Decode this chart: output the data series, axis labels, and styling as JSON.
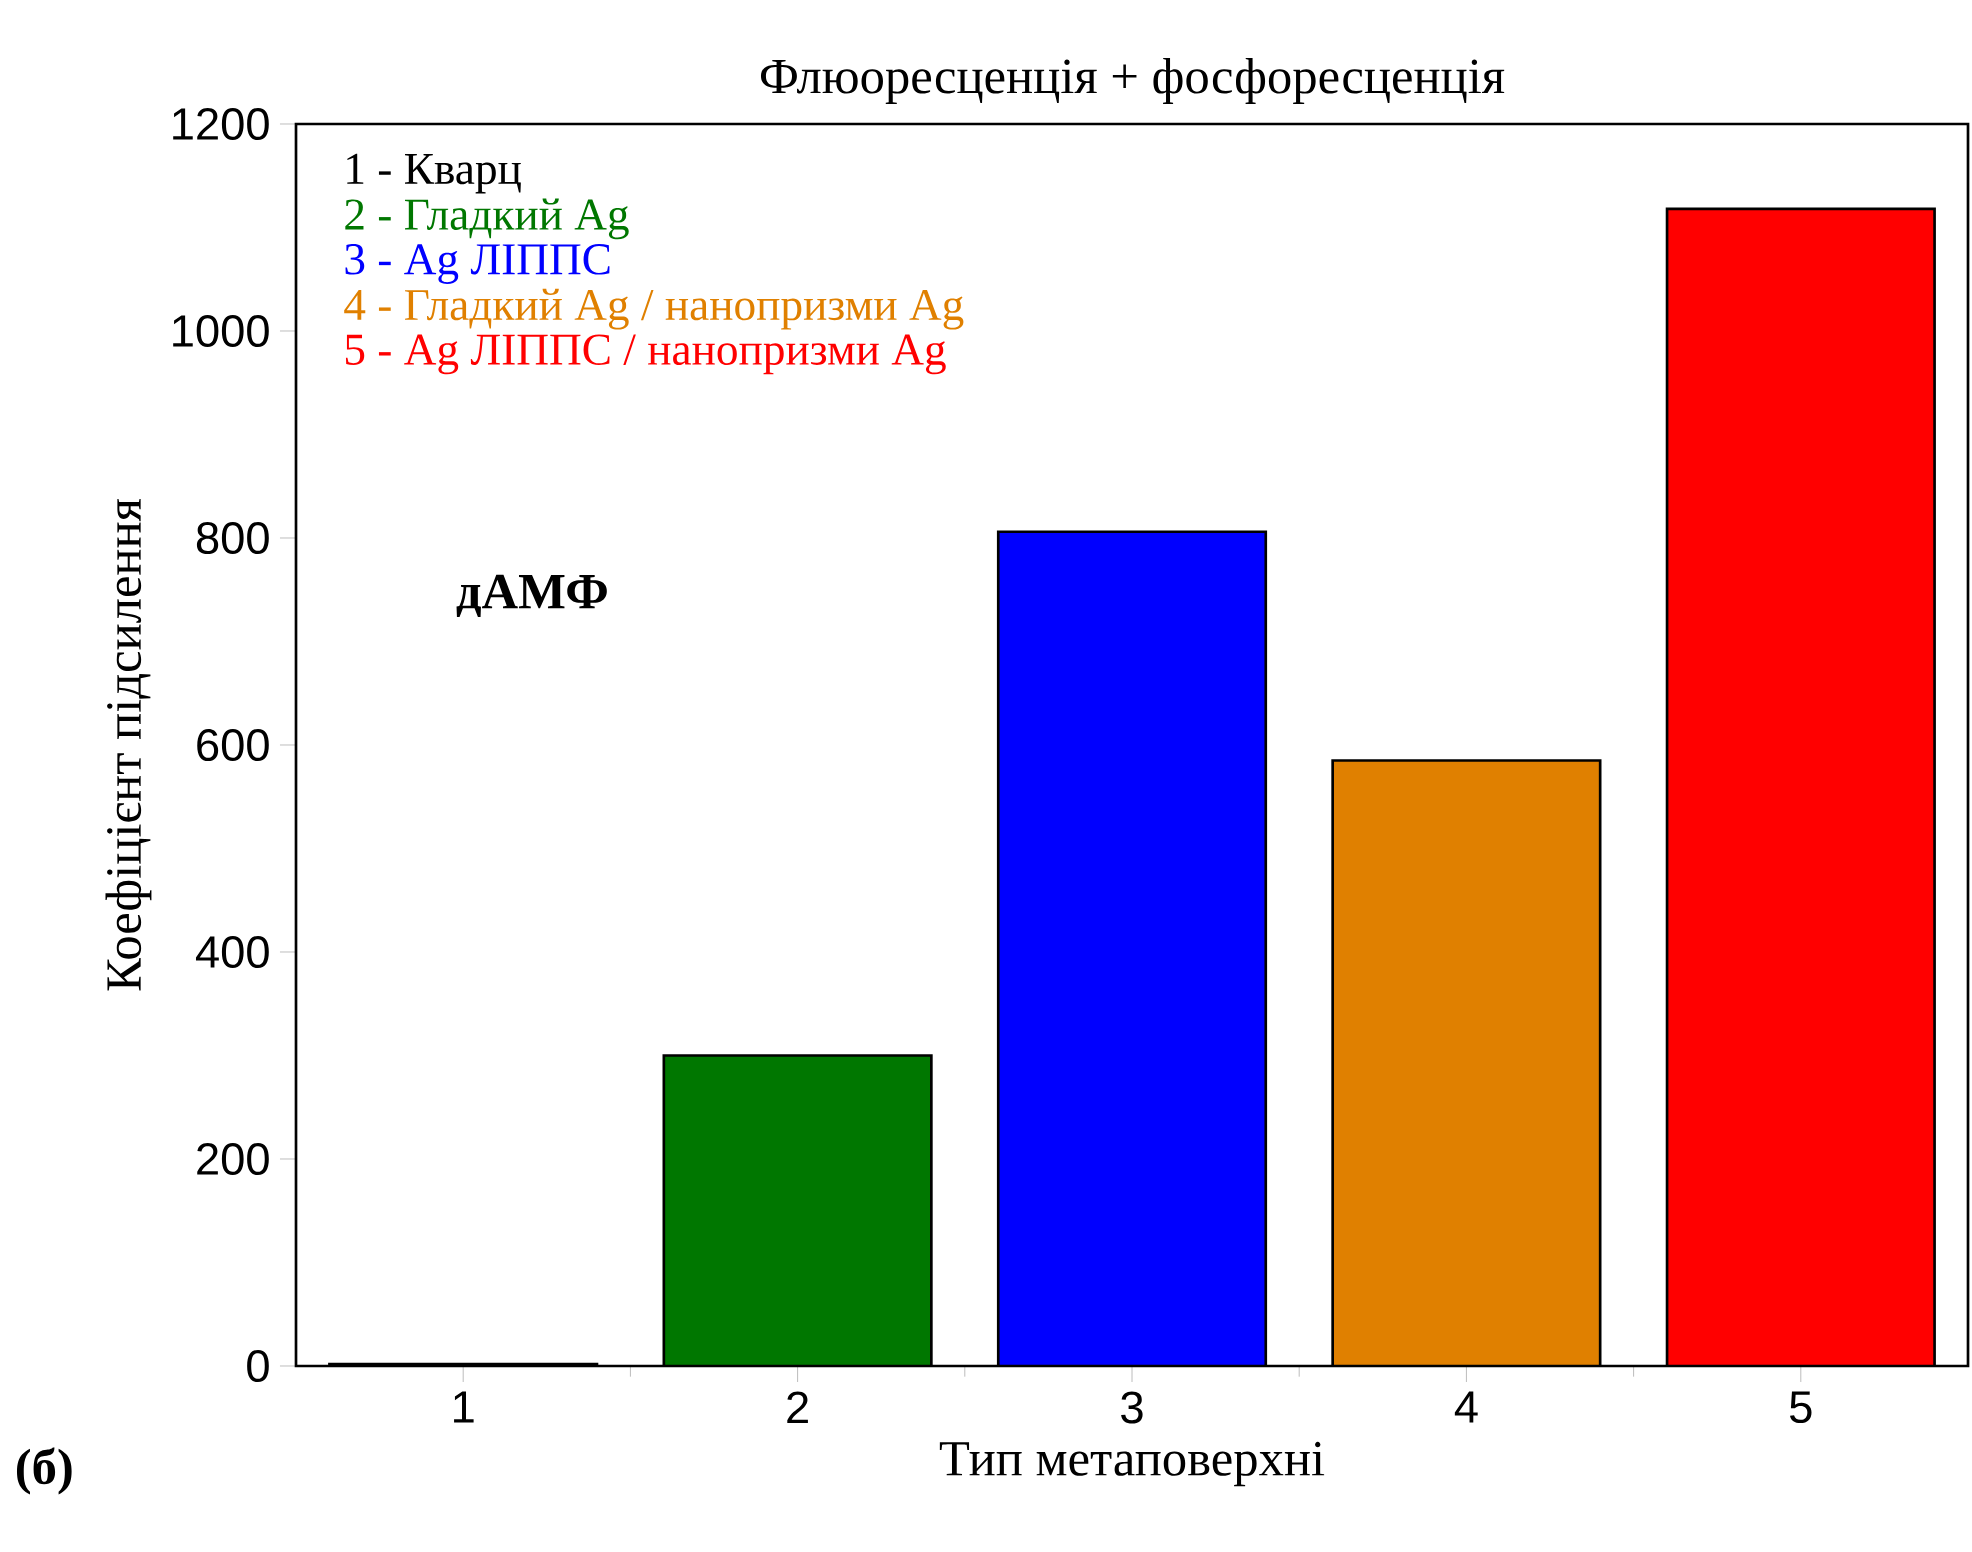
{
  "chart_data": {
    "type": "bar",
    "title": "Флюоресценція + фосфоресценція",
    "xlabel": "Тип метаповерхні",
    "ylabel": "Коефіцієнт підсилення",
    "categories": [
      "1",
      "2",
      "3",
      "4",
      "5"
    ],
    "series": [
      {
        "name": "1 - Кварц",
        "color": "#000000",
        "values": [
          2,
          null,
          null,
          null,
          null
        ]
      },
      {
        "name": "2 - Гладкий Ag",
        "color": "#007700",
        "values": [
          null,
          300,
          null,
          null,
          null
        ]
      },
      {
        "name": "3 - Ag ЛІППС",
        "color": "#0000ff",
        "values": [
          null,
          null,
          806,
          null,
          null
        ]
      },
      {
        "name": "4 - Гладкий Ag / нанопризми Ag",
        "color": "#e08000",
        "values": [
          null,
          null,
          null,
          585,
          null
        ]
      },
      {
        "name": "5 - Ag ЛІППС / нанопризми Ag",
        "color": "#ff0000",
        "values": [
          null,
          null,
          null,
          null,
          1118
        ]
      }
    ],
    "ylim": [
      0,
      1200
    ],
    "yticks": [
      0,
      200,
      400,
      600,
      800,
      1000,
      1200
    ],
    "legend": "top left",
    "grid": false,
    "annotations": [
      "дАМФ",
      "(б)"
    ]
  }
}
